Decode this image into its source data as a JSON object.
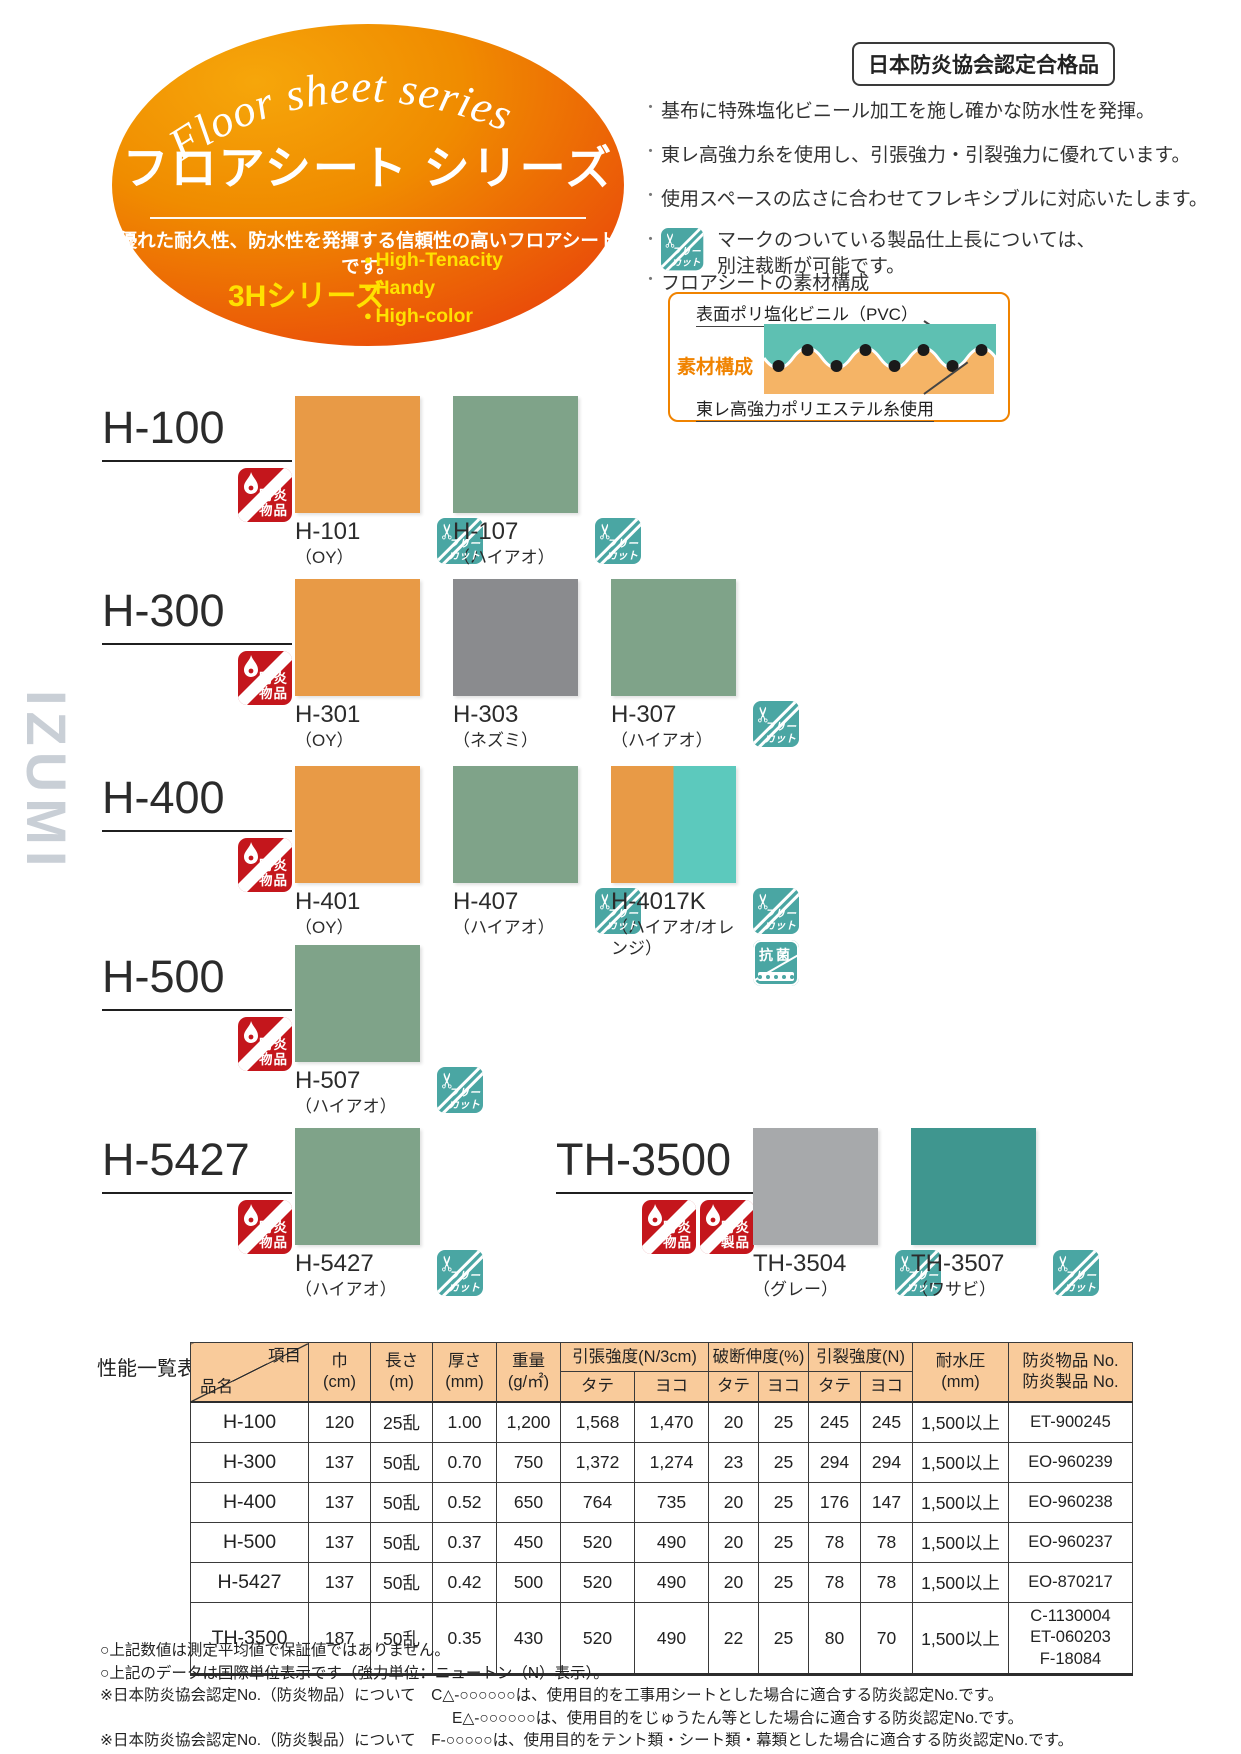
{
  "page": {
    "certification": "日本防炎協会認定合格品",
    "watermark": "IZUMI"
  },
  "hero": {
    "arc_title": "Floor sheet series",
    "title": "フロアシート シリーズ",
    "subtitle": "優れた耐久性、防水性を発揮する信頼性の高いフロアシートです。",
    "series_label": "3Hシリーズ",
    "series_features": [
      "High-Tenacity",
      "Handy",
      "High-color"
    ]
  },
  "features": {
    "bullets": [
      "基布に特殊塩化ビニール加工を施し確かな防水性を発揮。",
      "東レ高強力糸を使用し、引張強力・引裂強力に優れています。",
      "使用スペースの広さに合わせてフレキシブルに対応いたします。"
    ],
    "freecut_note": [
      "マークのついている製品仕上長については、",
      "別注裁断が可能です。"
    ],
    "material_bullet": "フロアシートの素材構成"
  },
  "material_diagram": {
    "top_label": "表面ポリ塩化ビニル（PVC）",
    "side_label": "素材構成",
    "bottom_label": "東レ高強力ポリエステル糸使用"
  },
  "icons": {
    "fire_item": {
      "lines": [
        "防炎",
        "物品"
      ]
    },
    "fire_product": {
      "lines": [
        "防炎",
        "製品"
      ]
    },
    "freecut": {
      "lines": [
        "フリー",
        "カット"
      ]
    },
    "antibacterial": {
      "label": "抗菌"
    }
  },
  "products": [
    {
      "series": "H-100",
      "badges": [
        "fire_item"
      ],
      "swatches": [
        {
          "code": "H-101",
          "name": "（OY）",
          "colors": [
            "#E89A46"
          ],
          "freecut": true,
          "antibacterial": false
        },
        {
          "code": "H-107",
          "name": "（ハイアオ）",
          "colors": [
            "#7FA389"
          ],
          "freecut": true,
          "antibacterial": false
        }
      ]
    },
    {
      "series": "H-300",
      "badges": [
        "fire_item"
      ],
      "swatches": [
        {
          "code": "H-301",
          "name": "（OY）",
          "colors": [
            "#E89A46"
          ],
          "freecut": false,
          "antibacterial": false
        },
        {
          "code": "H-303",
          "name": "（ネズミ）",
          "colors": [
            "#8A8B8E"
          ],
          "freecut": false,
          "antibacterial": false
        },
        {
          "code": "H-307",
          "name": "（ハイアオ）",
          "colors": [
            "#7FA389"
          ],
          "freecut": true,
          "antibacterial": false
        }
      ]
    },
    {
      "series": "H-400",
      "badges": [
        "fire_item"
      ],
      "swatches": [
        {
          "code": "H-401",
          "name": "（OY）",
          "colors": [
            "#E89A46"
          ],
          "freecut": false,
          "antibacterial": false
        },
        {
          "code": "H-407",
          "name": "（ハイアオ）",
          "colors": [
            "#7FA389"
          ],
          "freecut": true,
          "antibacterial": false
        },
        {
          "code": "H-4017K",
          "name": "（ハイアオ/オレンジ）",
          "colors": [
            "#E89A46",
            "#5CC9BD"
          ],
          "freecut": true,
          "antibacterial": true
        }
      ]
    },
    {
      "series": "H-500",
      "badges": [
        "fire_item"
      ],
      "swatches": [
        {
          "code": "H-507",
          "name": "（ハイアオ）",
          "colors": [
            "#7FA389"
          ],
          "freecut": true,
          "antibacterial": false
        }
      ]
    },
    {
      "series": "H-5427",
      "badges": [
        "fire_item"
      ],
      "swatches": [
        {
          "code": "H-5427",
          "name": "（ハイアオ）",
          "colors": [
            "#7FA389"
          ],
          "freecut": true,
          "antibacterial": false
        }
      ]
    },
    {
      "series": "TH-3500",
      "badges": [
        "fire_item",
        "fire_product"
      ],
      "swatches": [
        {
          "code": "TH-3504",
          "name": "（グレー）",
          "colors": [
            "#A7A9AB"
          ],
          "freecut": true,
          "antibacterial": false
        },
        {
          "code": "TH-3507",
          "name": "（ワサビ）",
          "colors": [
            "#3F968F"
          ],
          "freecut": true,
          "antibacterial": false
        }
      ]
    }
  ],
  "spec_table": {
    "caption": "性能一覧表",
    "corner_top": "項目",
    "corner_bottom": "品名",
    "columns": [
      {
        "label": "巾",
        "unit": "(cm)"
      },
      {
        "label": "長さ",
        "unit": "(m)"
      },
      {
        "label": "厚さ",
        "unit": "(mm)"
      },
      {
        "label": "重量",
        "unit": "(g/㎡)"
      }
    ],
    "groups": [
      {
        "label": "引張強度(N/3cm)",
        "sub": [
          "タテ",
          "ヨコ"
        ]
      },
      {
        "label": "破断伸度(%)",
        "sub": [
          "タテ",
          "ヨコ"
        ]
      },
      {
        "label": "引裂強度(N)",
        "sub": [
          "タテ",
          "ヨコ"
        ]
      }
    ],
    "tail_columns": [
      {
        "label": "耐水圧",
        "unit": "(mm)"
      },
      {
        "label": "防炎物品 No.",
        "unit": "防炎製品 No."
      }
    ],
    "rows": [
      {
        "name": "H-100",
        "values": [
          "120",
          "25乱",
          "1.00",
          "1,200",
          "1,568",
          "1,470",
          "20",
          "25",
          "245",
          "245",
          "1,500以上"
        ],
        "cert": [
          "ET-900245"
        ]
      },
      {
        "name": "H-300",
        "values": [
          "137",
          "50乱",
          "0.70",
          "750",
          "1,372",
          "1,274",
          "23",
          "25",
          "294",
          "294",
          "1,500以上"
        ],
        "cert": [
          "EO-960239"
        ]
      },
      {
        "name": "H-400",
        "values": [
          "137",
          "50乱",
          "0.52",
          "650",
          "764",
          "735",
          "20",
          "25",
          "176",
          "147",
          "1,500以上"
        ],
        "cert": [
          "EO-960238"
        ]
      },
      {
        "name": "H-500",
        "values": [
          "137",
          "50乱",
          "0.37",
          "450",
          "520",
          "490",
          "20",
          "25",
          "78",
          "78",
          "1,500以上"
        ],
        "cert": [
          "EO-960237"
        ]
      },
      {
        "name": "H-5427",
        "values": [
          "137",
          "50乱",
          "0.42",
          "500",
          "520",
          "490",
          "20",
          "25",
          "78",
          "78",
          "1,500以上"
        ],
        "cert": [
          "EO-870217"
        ]
      },
      {
        "name": "TH-3500",
        "values": [
          "187",
          "50乱",
          "0.35",
          "430",
          "520",
          "490",
          "22",
          "25",
          "80",
          "70",
          "1,500以上"
        ],
        "cert": [
          "C-1130004",
          "ET-060203",
          "F-18084"
        ]
      }
    ]
  },
  "footnotes": [
    {
      "text": "○上記数値は測定平均値で保証値ではありません。",
      "indent": 0
    },
    {
      "text": "○上記のデータは国際単位表示です（強力単位：ニュートン（N）表示）。",
      "indent": 0
    },
    {
      "text": "※日本防炎協会認定No.（防炎物品）について　C△-○○○○○○は、使用目的を工事用シートとした場合に適合する防炎認定No.です。",
      "indent": 0
    },
    {
      "text": "E△-○○○○○○は、使用目的をじゅうたん等とした場合に適合する防炎認定No.です。",
      "indent": 1
    },
    {
      "text": "※日本防炎協会認定No.（防炎製品）について　F-○○○○○は、使用目的をテント類・シート類・幕類とした場合に適合する防炎認定No.です。",
      "indent": 0
    }
  ],
  "colors": {
    "hero_gradient_start": "#F6A60A",
    "hero_gradient_end": "#E8380D",
    "series_yellow": "#FFE100",
    "accent_orange": "#F08300",
    "badge_red": "#C4161C",
    "icon_teal": "#4AA6A3",
    "table_header_bg": "#F9CB9B",
    "diagram_teal": "#5EC0B2",
    "diagram_orange": "#F5B466",
    "watermark_gray": "#C9CFD6"
  }
}
